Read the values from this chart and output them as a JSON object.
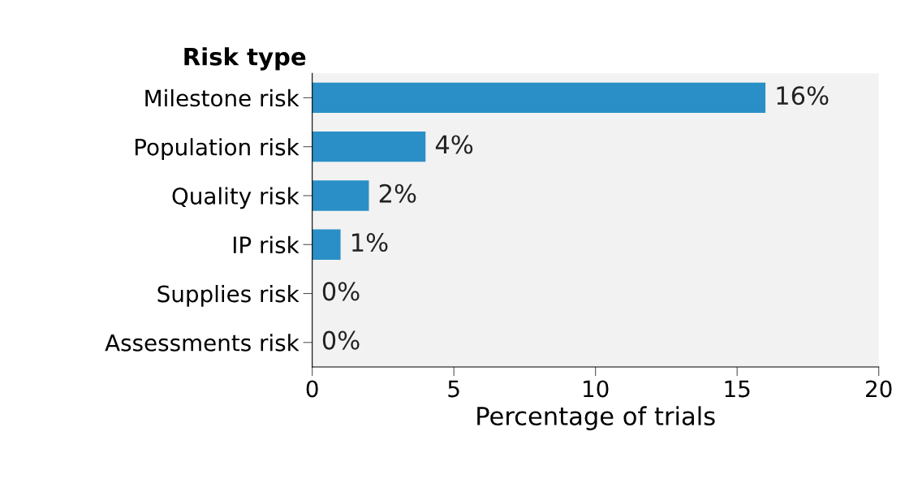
{
  "chart_data": {
    "type": "bar",
    "orientation": "horizontal",
    "ylabel": "Risk type",
    "xlabel": "Percentage of trials",
    "categories": [
      "Milestone risk",
      "Population risk",
      "Quality risk",
      "IP risk",
      "Supplies risk",
      "Assessments risk"
    ],
    "values": [
      16,
      4,
      2,
      1,
      0,
      0
    ],
    "value_labels": [
      "16%",
      "4%",
      "2%",
      "1%",
      "0%",
      "0%"
    ],
    "color": "#2a8fc6",
    "xlim": [
      0,
      20
    ],
    "xticks": [
      0,
      5,
      10,
      15,
      20
    ],
    "grid": false,
    "legend": false
  }
}
